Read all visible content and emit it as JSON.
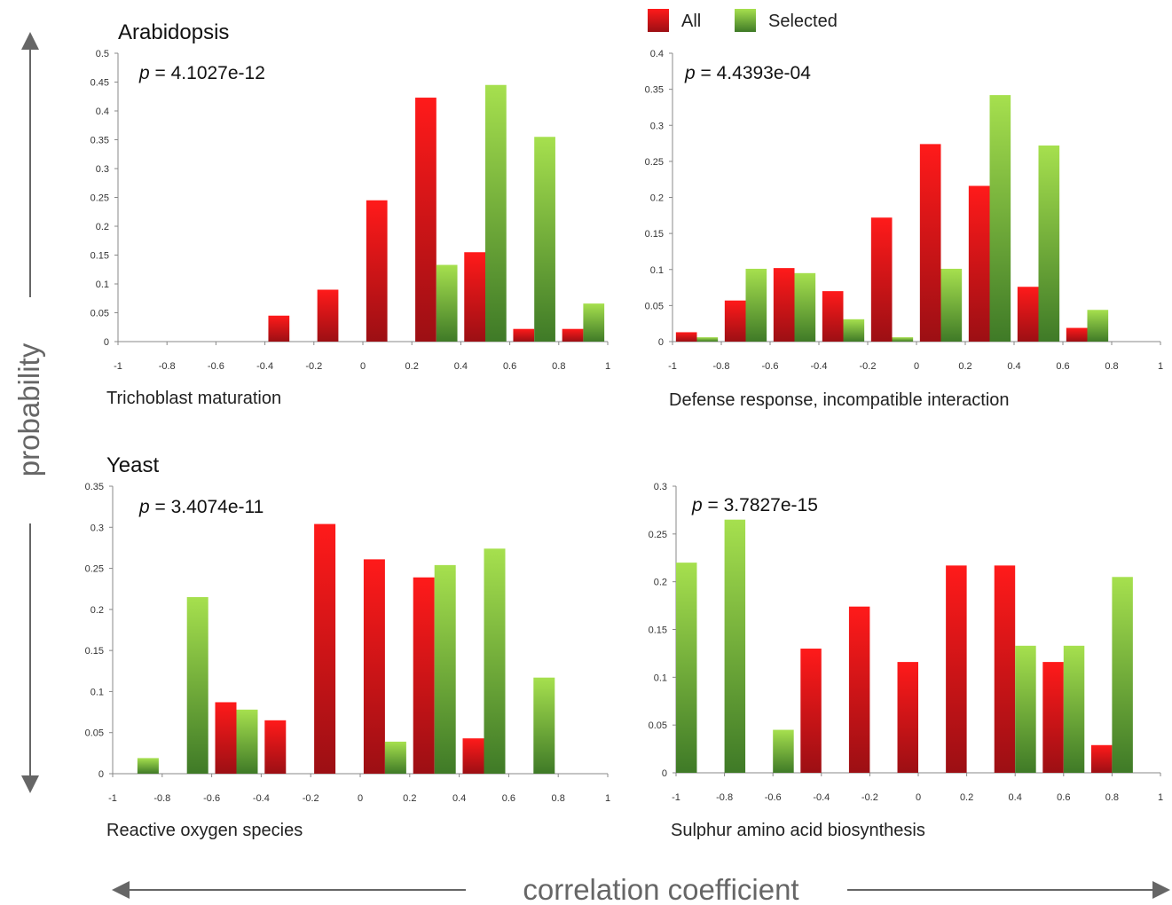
{
  "figure": {
    "ylabel": "probability",
    "xlabel": "correlation coefficient",
    "legend": {
      "placement": "top",
      "entries": [
        {
          "label": "All",
          "color": "#d61a1f"
        },
        {
          "label": "Selected",
          "color": "#8fca3c"
        }
      ]
    }
  },
  "chart_data": [
    {
      "type": "bar",
      "organism": "Arabidopsis",
      "pvalue_label": "= 4.1027e-12",
      "xlabel": "Trichoblast maturation",
      "xlim": [
        -1,
        1
      ],
      "xticks": [
        "-1",
        "-0.8",
        "-0.6",
        "-0.4",
        "-0.2",
        "0",
        "0.2",
        "0.4",
        "0.6",
        "0.8",
        "1"
      ],
      "ylim": [
        0,
        0.5
      ],
      "yticks": [
        "0",
        "0.05",
        "0.1",
        "0.15",
        "0.2",
        "0.25",
        "0.3",
        "0.35",
        "0.4",
        "0.45",
        "0.5"
      ],
      "bin_centers": [
        -0.9,
        -0.7,
        -0.5,
        -0.3,
        -0.1,
        0.1,
        0.3,
        0.5,
        0.7,
        0.9
      ],
      "series": [
        {
          "name": "All",
          "values": [
            0,
            0,
            0,
            0.045,
            0.09,
            0.245,
            0.423,
            0.155,
            0.022,
            0.022
          ]
        },
        {
          "name": "Selected",
          "values": [
            0,
            0,
            0,
            0,
            0,
            0,
            0.133,
            0.445,
            0.355,
            0.066
          ]
        }
      ]
    },
    {
      "type": "bar",
      "organism": "",
      "pvalue_label": "= 4.4393e-04",
      "xlabel": "Defense response, incompatible interaction",
      "xlim": [
        -1,
        1
      ],
      "xticks": [
        "-1",
        "-0.8",
        "-0.6",
        "-0.4",
        "-0.2",
        "0",
        "0.2",
        "0.4",
        "0.6",
        "0.8",
        "1"
      ],
      "ylim": [
        0,
        0.4
      ],
      "yticks": [
        "0",
        "0.05",
        "0.1",
        "0.15",
        "0.2",
        "0.25",
        "0.3",
        "0.35",
        "0.4"
      ],
      "bin_centers": [
        -0.9,
        -0.7,
        -0.5,
        -0.3,
        -0.1,
        0.1,
        0.3,
        0.5,
        0.7,
        0.9
      ],
      "series": [
        {
          "name": "All",
          "values": [
            0.013,
            0.057,
            0.102,
            0.07,
            0.172,
            0.274,
            0.216,
            0.076,
            0.019,
            0
          ]
        },
        {
          "name": "Selected",
          "values": [
            0.006,
            0.101,
            0.095,
            0.031,
            0.006,
            0.101,
            0.342,
            0.272,
            0.044,
            0
          ]
        }
      ]
    },
    {
      "type": "bar",
      "organism": "Yeast",
      "pvalue_label": "= 3.4074e-11",
      "xlabel": "Reactive oxygen species",
      "xlim": [
        -1,
        1
      ],
      "xticks": [
        "-1",
        "-0.8",
        "-0.6",
        "-0.4",
        "-0.2",
        "0",
        "0.2",
        "0.4",
        "0.6",
        "0.8",
        "1"
      ],
      "ylim": [
        0,
        0.35
      ],
      "yticks": [
        "0",
        "0.05",
        "0.1",
        "0.15",
        "0.2",
        "0.25",
        "0.3",
        "0.35"
      ],
      "bin_centers": [
        -0.9,
        -0.7,
        -0.5,
        -0.3,
        -0.1,
        0.1,
        0.3,
        0.5,
        0.7,
        0.9
      ],
      "series": [
        {
          "name": "All",
          "values": [
            0,
            0,
            0.087,
            0.065,
            0.304,
            0.261,
            0.239,
            0.043,
            0,
            0
          ]
        },
        {
          "name": "Selected",
          "values": [
            0.019,
            0.215,
            0.078,
            0,
            0,
            0.039,
            0.254,
            0.274,
            0.117,
            0
          ]
        }
      ]
    },
    {
      "type": "bar",
      "organism": "",
      "pvalue_label": "= 3.7827e-15",
      "xlabel": "Sulphur amino acid biosynthesis",
      "xlim": [
        -1,
        1
      ],
      "xticks": [
        "-1",
        "-0.8",
        "-0.6",
        "-0.4",
        "-0.2",
        "0",
        "0.2",
        "0.4",
        "0.6",
        "0.8",
        "1"
      ],
      "ylim": [
        0,
        0.3
      ],
      "yticks": [
        "0",
        "0.05",
        "0.1",
        "0.15",
        "0.2",
        "0.25",
        "0.3"
      ],
      "bin_centers": [
        -1,
        -0.8,
        -0.6,
        -0.4,
        -0.2,
        0,
        0.2,
        0.4,
        0.6,
        0.8
      ],
      "series": [
        {
          "name": "All",
          "values": [
            0,
            0,
            0,
            0.13,
            0.174,
            0.116,
            0.217,
            0.217,
            0.116,
            0.029
          ]
        },
        {
          "name": "Selected",
          "values": [
            0.22,
            0.265,
            0.045,
            0,
            0,
            0,
            0,
            0.133,
            0.133,
            0.205
          ]
        }
      ]
    }
  ]
}
